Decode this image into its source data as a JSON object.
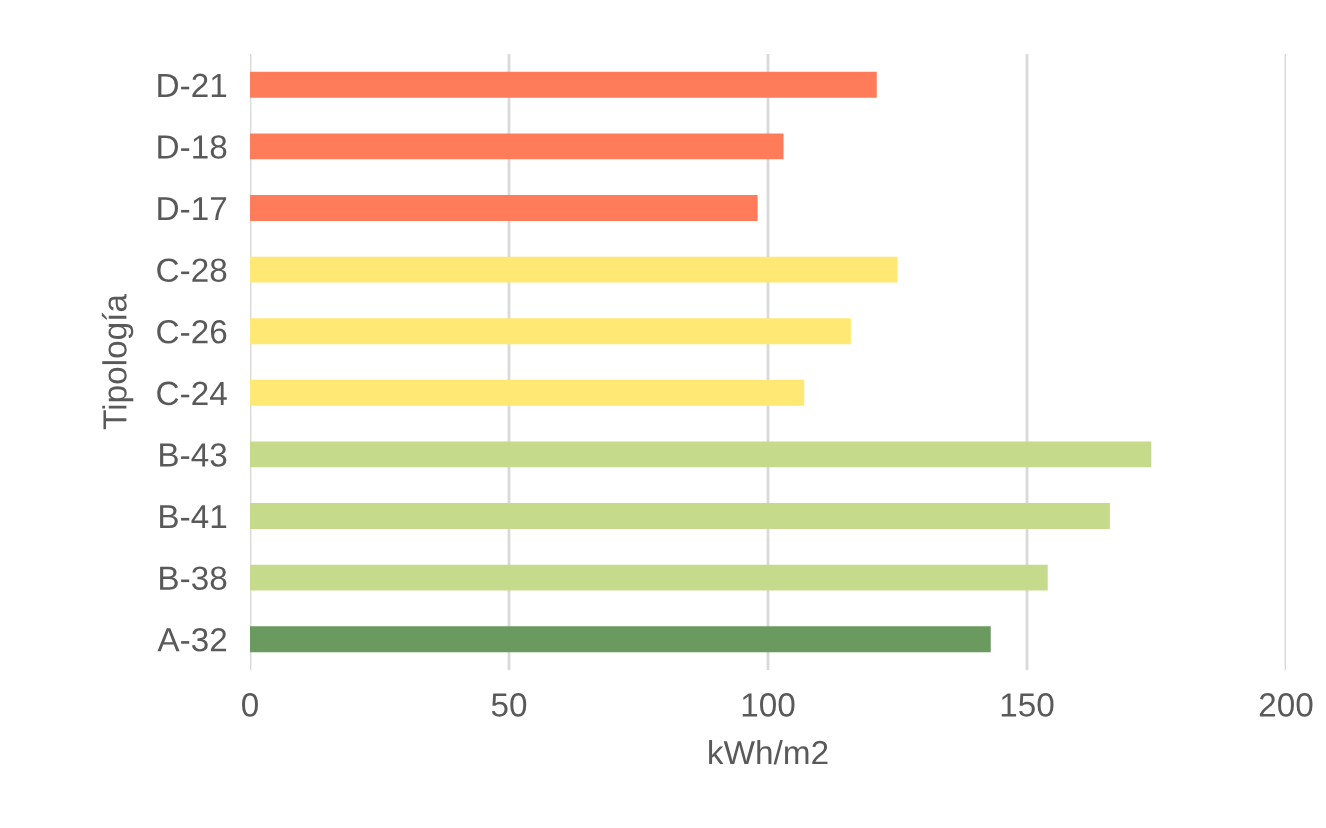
{
  "chart_data": {
    "type": "bar",
    "orientation": "horizontal",
    "ylabel": "Tipología",
    "xlabel": "kWh/m2",
    "categories": [
      "D-21",
      "D-18",
      "D-17",
      "C-28",
      "C-26",
      "C-24",
      "B-43",
      "B-41",
      "B-38",
      "A-32"
    ],
    "values": [
      121,
      103,
      98,
      125,
      116,
      107,
      174,
      166,
      154,
      143
    ],
    "colors": [
      "#ff7c5a",
      "#ff7c5a",
      "#ff7c5a",
      "#ffe873",
      "#ffe873",
      "#ffe873",
      "#c5da8b",
      "#c5da8b",
      "#c5da8b",
      "#6a9a5e"
    ],
    "xlim": [
      0,
      200
    ],
    "xticks": [
      0,
      50,
      100,
      150,
      200
    ],
    "grid": "x",
    "legend": false
  }
}
